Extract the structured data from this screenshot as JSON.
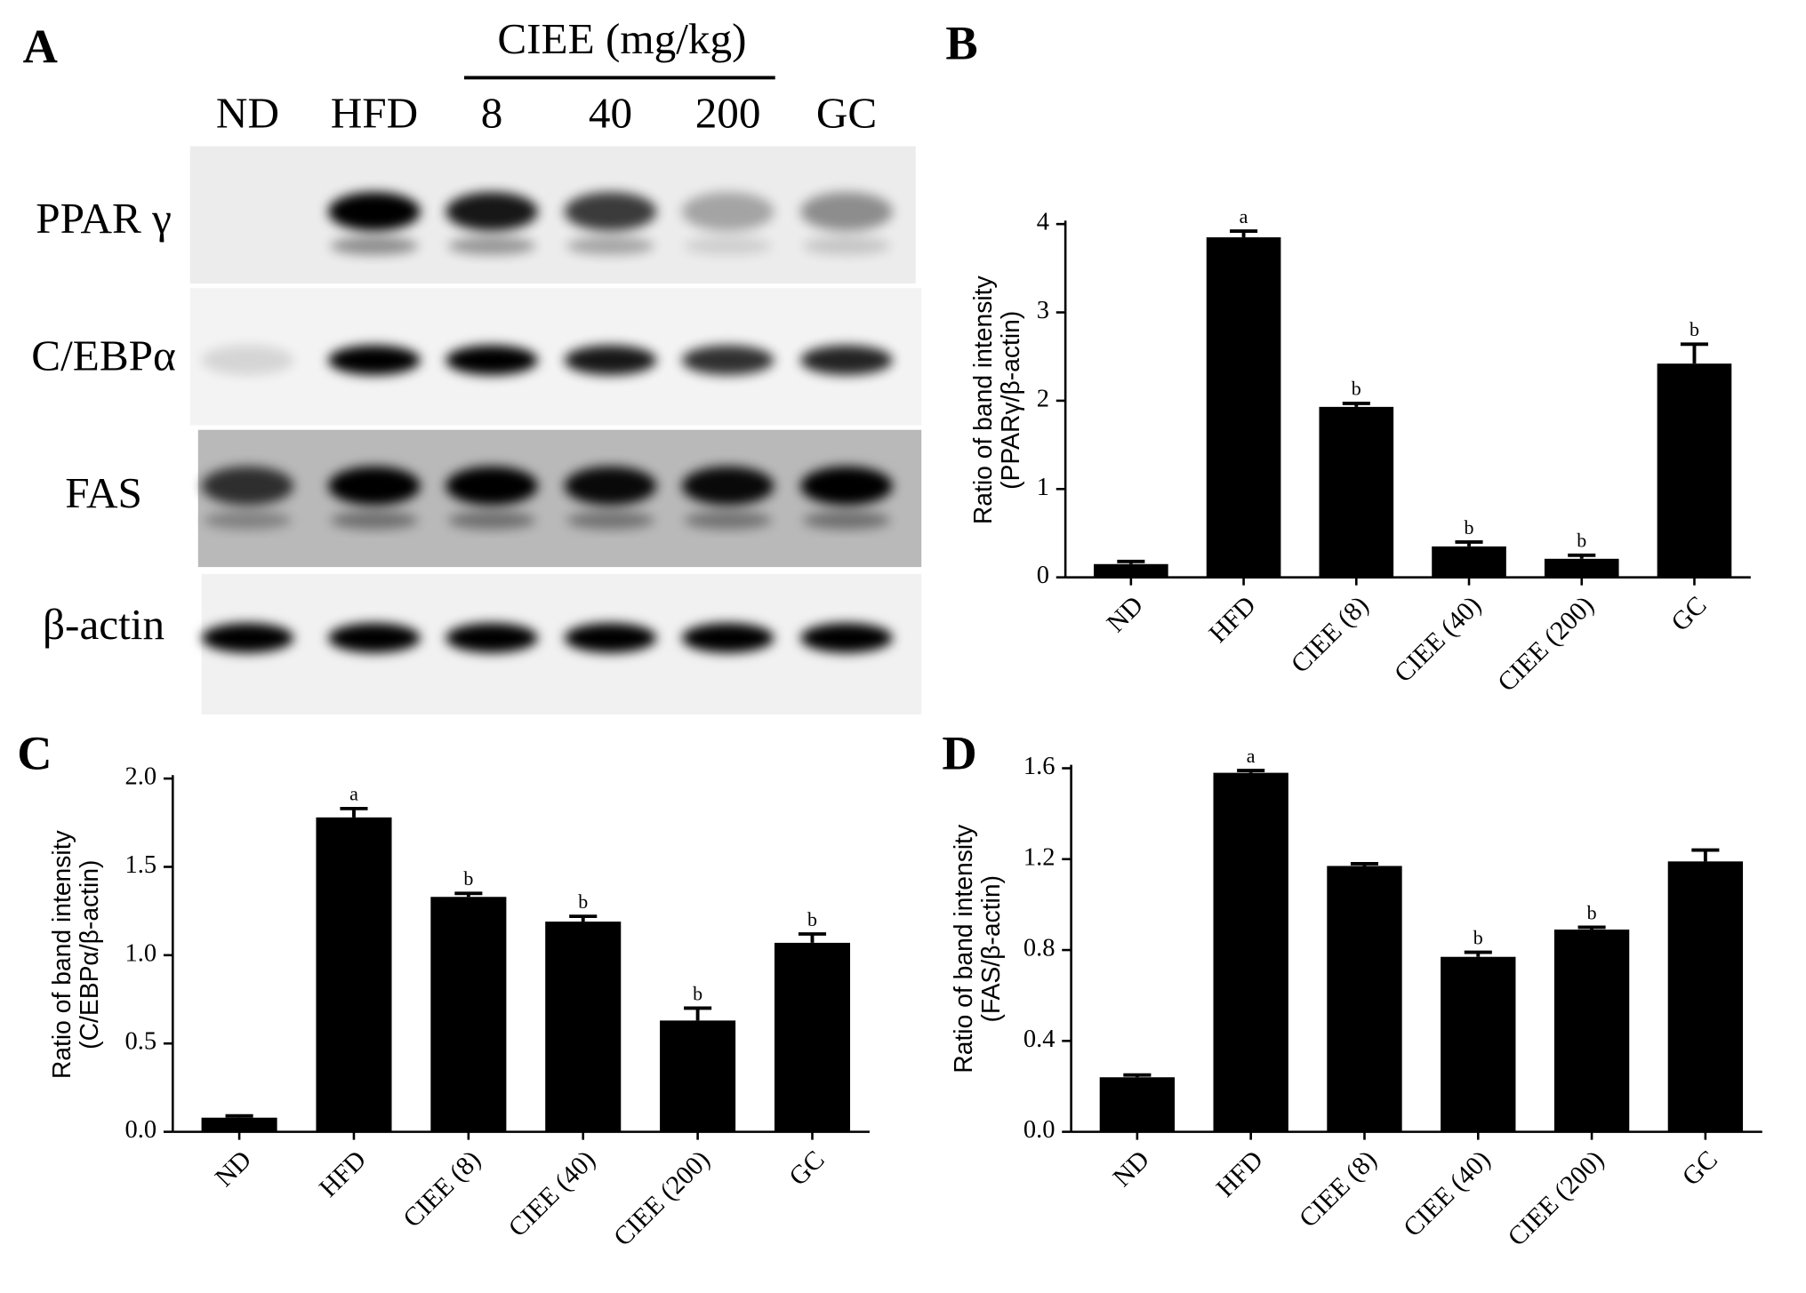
{
  "blot": {
    "panel_label": "A",
    "group_label": "CIEE (mg/kg)",
    "lanes": [
      "ND",
      "HFD",
      "8",
      "40",
      "200",
      "GC"
    ],
    "rows": [
      "PPAR γ",
      "C/EBPα",
      "FAS",
      "β-actin"
    ]
  },
  "chart_data": [
    {
      "type": "bar",
      "panel_label": "B",
      "y_label": [
        "Ratio of band intensity",
        "(PPARγ/β-actin)"
      ],
      "categories": [
        "ND",
        "HFD",
        "CIEE (8)",
        "CIEE (40)",
        "CIEE (200)",
        "GC"
      ],
      "values": [
        0.15,
        3.85,
        1.93,
        0.35,
        0.21,
        2.42
      ],
      "errors": [
        0.03,
        0.07,
        0.04,
        0.05,
        0.04,
        0.22
      ],
      "annotations": [
        null,
        "a",
        "b",
        "b",
        "b",
        "b"
      ],
      "color": "#000000",
      "ylim": [
        0,
        4
      ],
      "yticks": [
        0,
        1,
        2,
        3,
        4
      ]
    },
    {
      "type": "bar",
      "panel_label": "C",
      "y_label": [
        "Ratio of band intensity",
        "(C/EBPα/β-actin)"
      ],
      "categories": [
        "ND",
        "HFD",
        "CIEE (8)",
        "CIEE (40)",
        "CIEE (200)",
        "GC"
      ],
      "values": [
        0.08,
        1.78,
        1.33,
        1.19,
        0.63,
        1.07
      ],
      "errors": [
        0.01,
        0.05,
        0.02,
        0.03,
        0.07,
        0.05
      ],
      "annotations": [
        null,
        "a",
        "b",
        "b",
        "b",
        "b"
      ],
      "color": "#000000",
      "ylim": [
        0,
        2
      ],
      "yticks": [
        {
          "value": 0,
          "label": "0.0"
        },
        0.5,
        {
          "value": 1,
          "label": "1.0"
        },
        1.5,
        {
          "value": 2,
          "label": "2.0"
        }
      ]
    },
    {
      "type": "bar",
      "panel_label": "D",
      "y_label": [
        "Ratio of band intensity",
        "(FAS/β-actin)"
      ],
      "categories": [
        "ND",
        "HFD",
        "CIEE (8)",
        "CIEE (40)",
        "CIEE (200)",
        "GC"
      ],
      "values": [
        0.24,
        1.58,
        1.17,
        0.77,
        0.89,
        1.19
      ],
      "errors": [
        0.01,
        0.01,
        0.01,
        0.02,
        0.01,
        0.05
      ],
      "annotations": [
        null,
        "a",
        null,
        "b",
        "b",
        null
      ],
      "color": "#000000",
      "ylim": [
        0,
        1.6
      ],
      "yticks": [
        {
          "value": 0,
          "label": "0.0"
        },
        0.4,
        0.8,
        1.2,
        1.6
      ]
    }
  ]
}
